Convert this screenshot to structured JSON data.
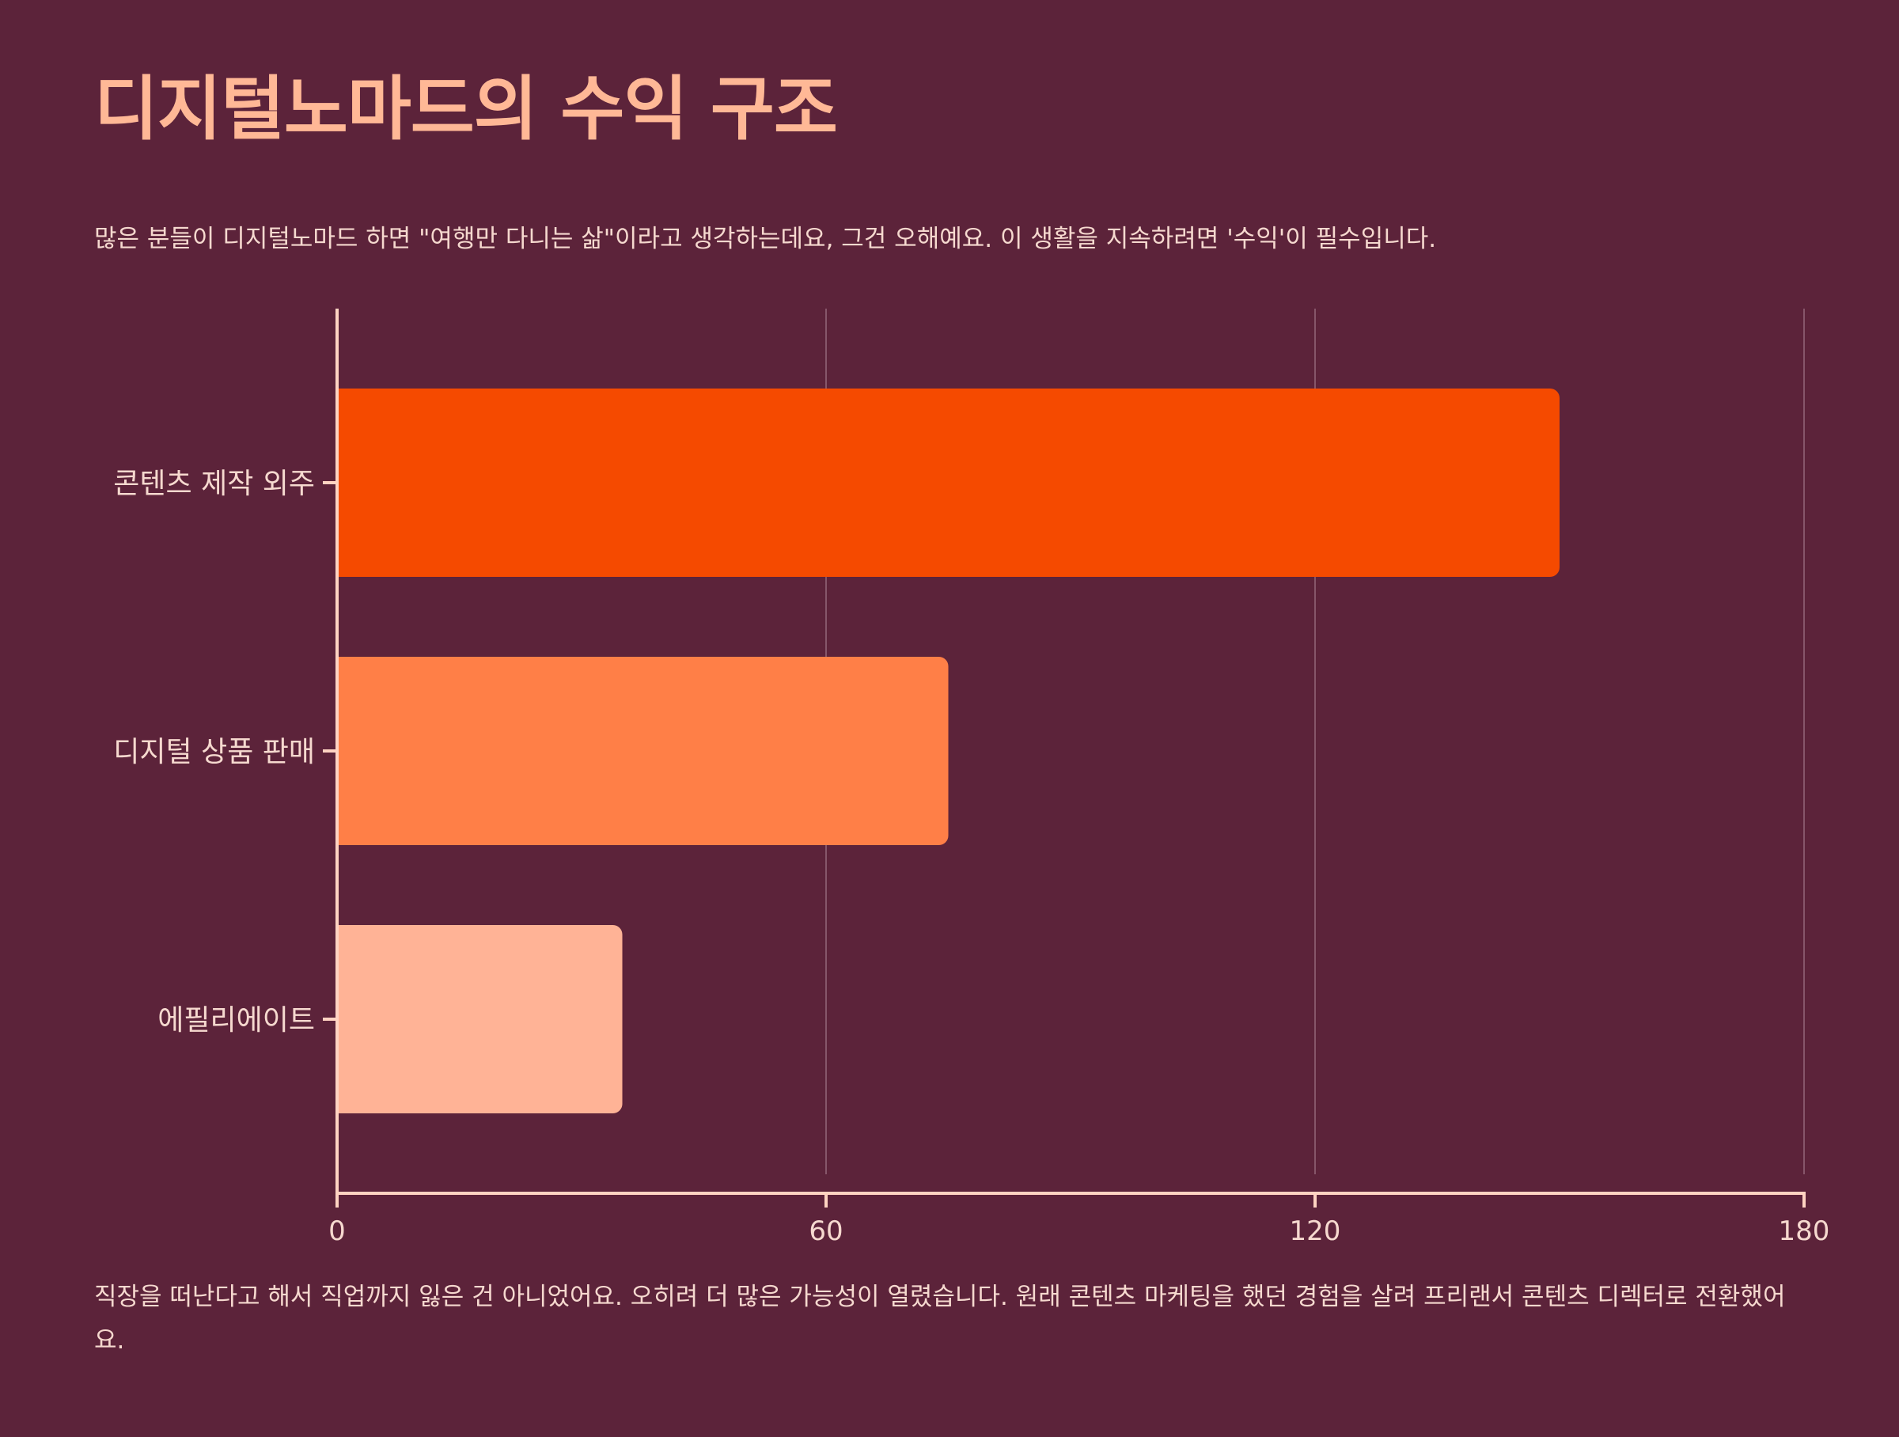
{
  "header": {
    "title": "디지털노마드의 수익 구조",
    "subtitle": "많은 분들이 디지털노마드 하면 \"여행만 다니는 삶\"이라고 생각하는데요, 그건 오해예요. 이 생활을 지속하려면 '수익'이 필수입니다."
  },
  "footer": {
    "text": "직장을 떠난다고 해서 직업까지 잃은 건 아니었어요. 오히려 더 많은 가능성이 열렸습니다. 원래 콘텐츠 마케팅을 했던 경험을 살려 프리랜서 콘텐츠 디렉터로 전환했어요."
  },
  "colors": {
    "background": "#5c233a",
    "bars": [
      "#f54a00",
      "#ff7f47",
      "#ffb396"
    ],
    "axis": "#ffd3c2",
    "grid": "#86566a"
  },
  "chart_data": {
    "type": "bar",
    "orientation": "horizontal",
    "categories": [
      "콘텐츠 제작 외주",
      "디지털 상품 판매",
      "에필리에이트"
    ],
    "values": [
      150,
      75,
      35
    ],
    "x_ticks": [
      "0",
      "60",
      "120",
      "180"
    ],
    "xlim": [
      0,
      180
    ],
    "grid": true
  }
}
